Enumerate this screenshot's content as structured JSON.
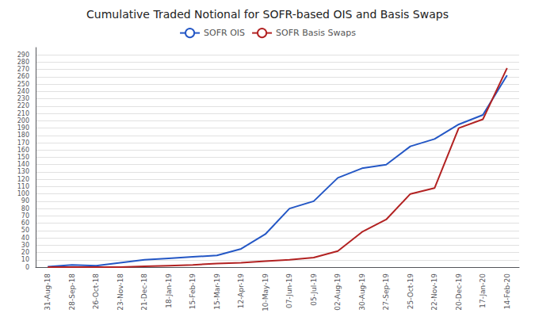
{
  "chart_data": {
    "type": "line",
    "title": "Cumulative Traded Notional for SOFR-based OIS and Basis Swaps",
    "categories": [
      "31-Aug-18",
      "28-Sep-18",
      "26-Oct-18",
      "23-Nov-18",
      "21-Dec-18",
      "18-Jan-19",
      "15-Feb-19",
      "15-Mar-19",
      "12-Apr-19",
      "10-May-19",
      "07-Jun-19",
      "05-Jul-19",
      "02-Aug-19",
      "30-Aug-19",
      "27-Sep-19",
      "25-Oct-19",
      "22-Nov-19",
      "20-Dec-19",
      "17-Jan-20",
      "14-Feb-20"
    ],
    "series": [
      {
        "name": "SOFR OIS",
        "color": "#2457c5",
        "values": [
          0.5,
          3,
          2,
          6,
          10,
          12,
          14,
          16,
          25,
          45,
          80,
          90,
          122,
          135,
          140,
          165,
          175,
          195,
          208,
          262
        ]
      },
      {
        "name": "SOFR Basis Swaps",
        "color": "#b22222",
        "values": [
          0,
          0,
          0,
          0,
          1,
          2,
          3,
          5,
          6,
          8,
          10,
          13,
          22,
          48,
          65,
          100,
          108,
          190,
          202,
          272
        ]
      }
    ],
    "ylim": [
      0,
      300
    ],
    "yticks": [
      0,
      10,
      20,
      30,
      40,
      50,
      60,
      70,
      80,
      90,
      100,
      110,
      120,
      130,
      140,
      150,
      160,
      170,
      180,
      190,
      200,
      210,
      220,
      230,
      240,
      250,
      260,
      270,
      280,
      290
    ],
    "grid": true,
    "legend": "top"
  }
}
